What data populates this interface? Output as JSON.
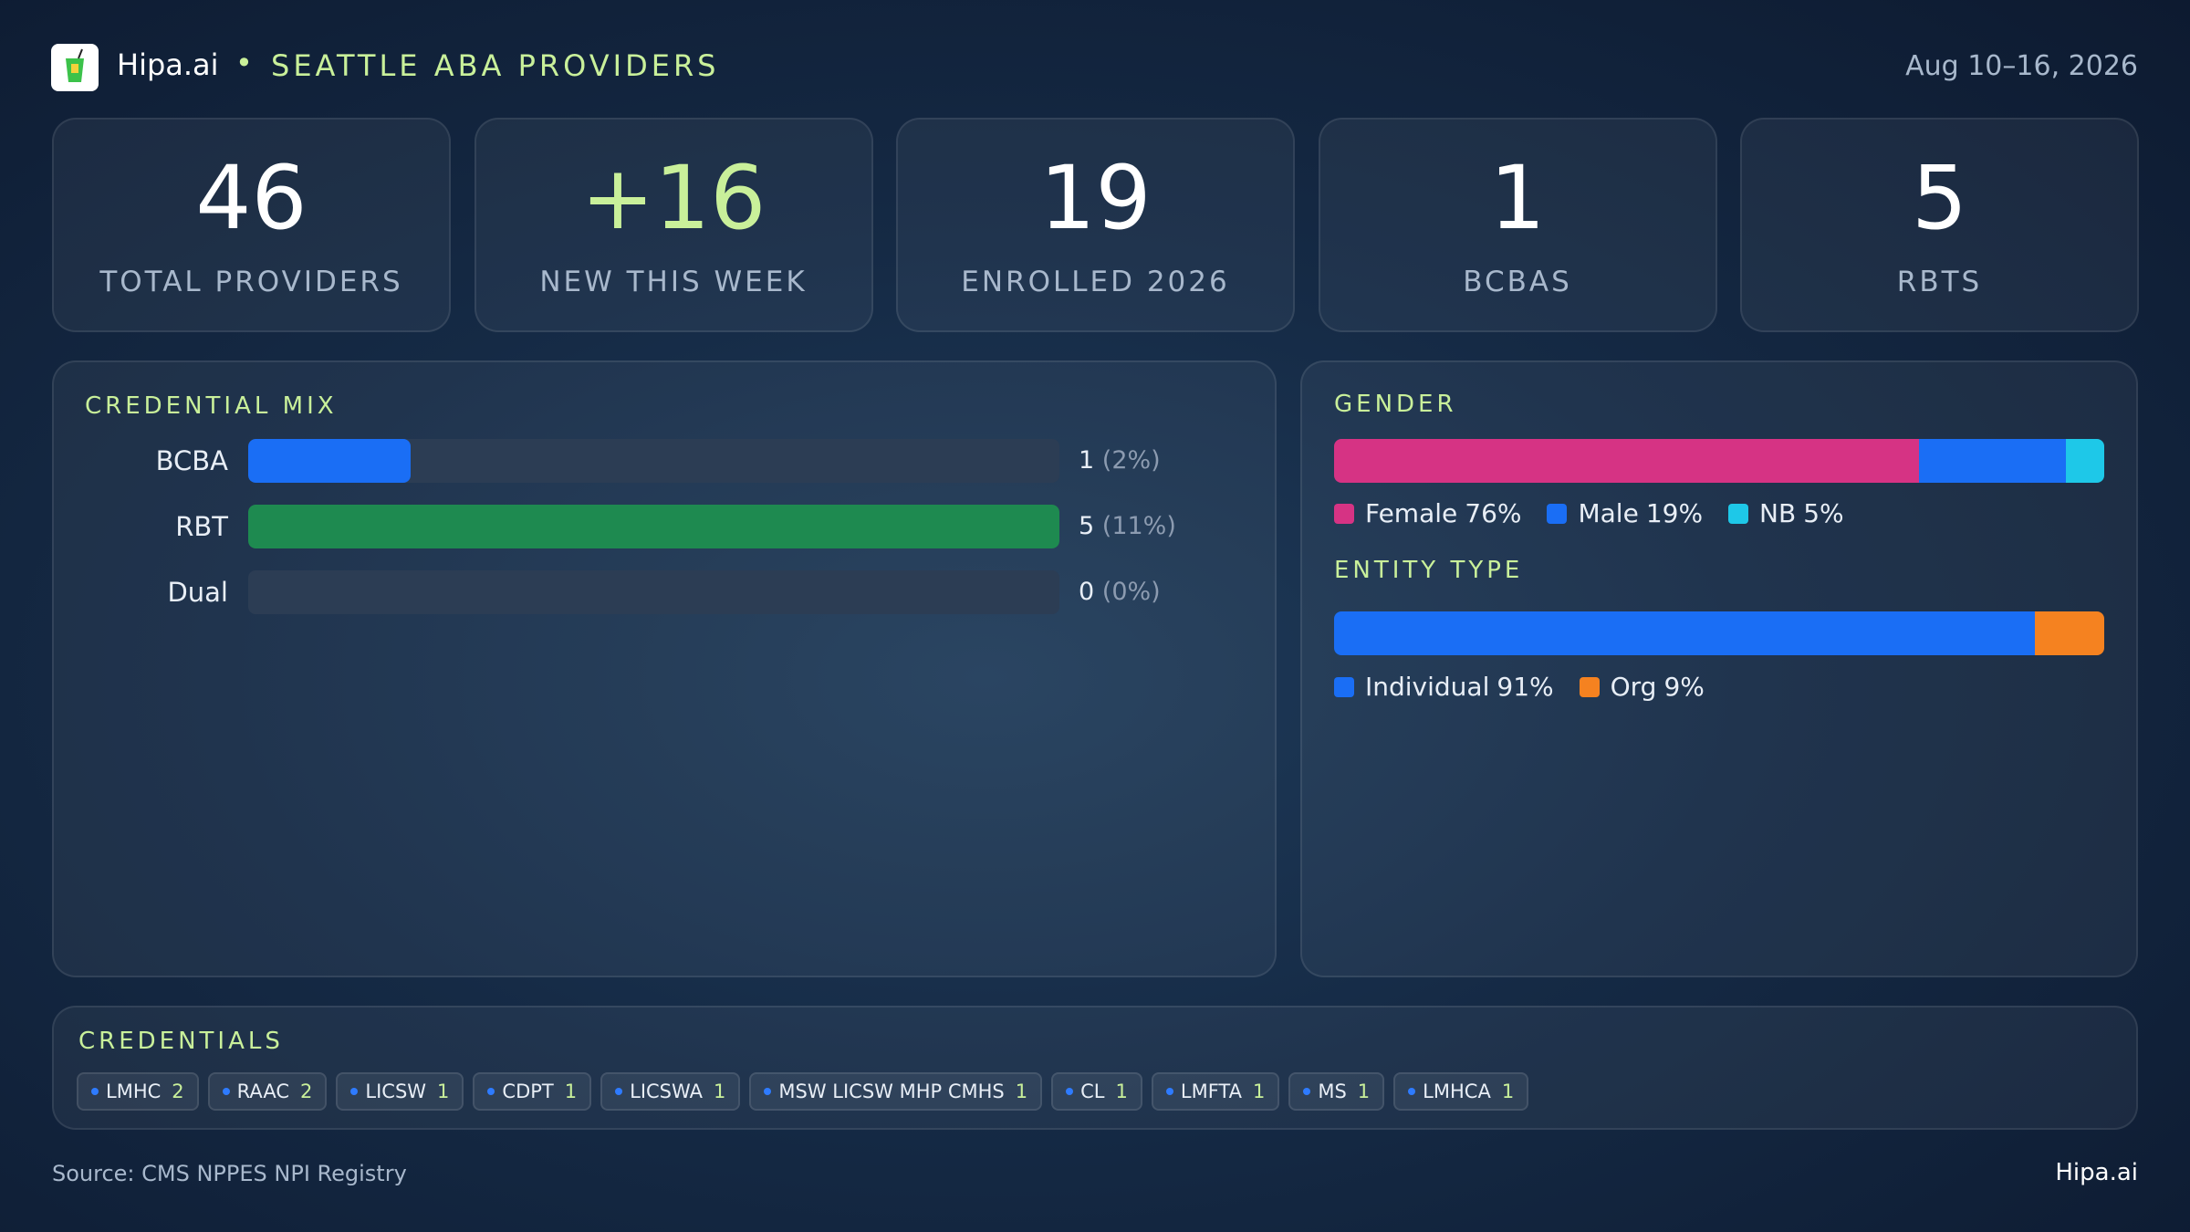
{
  "header": {
    "brand": "Hipa.ai",
    "title": "SEATTLE ABA PROVIDERS",
    "date_range": "Aug 10–16, 2026"
  },
  "kpis": [
    {
      "value": 46,
      "label": "TOTAL PROVIDERS",
      "color": "#ffffff"
    },
    {
      "value": "+16",
      "label": "NEW THIS WEEK",
      "color": "#c9f09a"
    },
    {
      "value": 19,
      "label": "ENROLLED 2026",
      "color": "#ffffff"
    },
    {
      "value": 1,
      "label": "BCBAS",
      "color": "#ffffff"
    },
    {
      "value": 5,
      "label": "RBTS",
      "color": "#ffffff"
    }
  ],
  "credential_mix": {
    "type": "bar",
    "title": "CREDENTIAL MIX",
    "categories": [
      "BCBA",
      "RBT",
      "Dual"
    ],
    "values": [
      1,
      5,
      0
    ],
    "percent_labels": [
      "(2%)",
      "(11%)",
      "(0%)"
    ],
    "colors": [
      "#1a6ef5",
      "#1e8a50",
      "#2e6cf0"
    ]
  },
  "gender": {
    "type": "stacked-bar",
    "title": "GENDER",
    "series": [
      {
        "name": "Female",
        "value": 76,
        "label": "76%",
        "color": "#d63384"
      },
      {
        "name": "Male",
        "value": 19,
        "label": "19%",
        "color": "#1a6ef5"
      },
      {
        "name": "NB",
        "value": 5,
        "label": "5%",
        "color": "#1ec8e8"
      }
    ]
  },
  "entity_type": {
    "type": "stacked-bar",
    "title": "ENTITY TYPE",
    "series": [
      {
        "name": "Individual",
        "value": 91,
        "label": "91%",
        "color": "#1a6ef5"
      },
      {
        "name": "Org",
        "value": 9,
        "label": "9%",
        "color": "#f58220"
      }
    ]
  },
  "credentials": {
    "title": "CREDENTIALS",
    "tags": [
      {
        "name": "LMHC",
        "count": 2
      },
      {
        "name": "RAAC",
        "count": 2
      },
      {
        "name": "LICSW",
        "count": 1
      },
      {
        "name": "CDPT",
        "count": 1
      },
      {
        "name": "LICSWA",
        "count": 1
      },
      {
        "name": "MSW LICSW MHP CMHS",
        "count": 1
      },
      {
        "name": "CL",
        "count": 1
      },
      {
        "name": "LMFTA",
        "count": 1
      },
      {
        "name": "MS",
        "count": 1
      },
      {
        "name": "LMHCA",
        "count": 1
      }
    ]
  },
  "footer": {
    "source": "Source: CMS NPPES NPI Registry",
    "brand": "Hipa.ai"
  }
}
